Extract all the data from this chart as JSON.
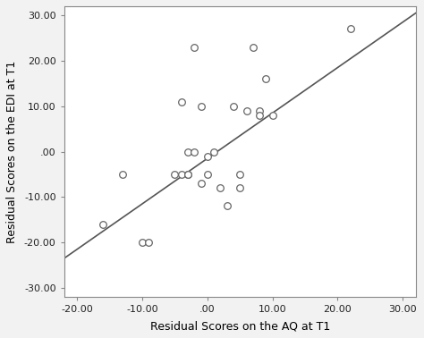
{
  "x_points": [
    -16,
    -13,
    -10,
    -9,
    -5,
    -4,
    -4,
    -3,
    -3,
    -3,
    -2,
    -2,
    -1,
    -1,
    0,
    0,
    1,
    2,
    3,
    4,
    5,
    5,
    6,
    7,
    8,
    8,
    9,
    10,
    22
  ],
  "y_points": [
    -16,
    -5,
    -20,
    -20,
    -5,
    -5,
    11,
    0,
    -5,
    -5,
    0,
    23,
    -7,
    10,
    -5,
    -1,
    0,
    -8,
    -12,
    10,
    -8,
    -5,
    9,
    23,
    9,
    8,
    16,
    8,
    27
  ],
  "line_x_start": -22,
  "line_x_end": 32,
  "line_slope": 1.0,
  "line_intercept": -1.5,
  "xlim": [
    -22,
    32
  ],
  "ylim": [
    -32,
    32
  ],
  "xticks": [
    -20,
    -10,
    0,
    10,
    20,
    30
  ],
  "yticks": [
    -30,
    -20,
    -10,
    0,
    10,
    20,
    30
  ],
  "xtick_labels": [
    "-20.00",
    "-10.00",
    ".00",
    "10.00",
    "20.00",
    "30.00"
  ],
  "ytick_labels": [
    "-30.00",
    "-20.00",
    "-10.00",
    ".00",
    "10.00",
    "20.00",
    "30.00"
  ],
  "xlabel": "Residual Scores on the AQ at T1",
  "ylabel": "Residual Scores on the EDI at T1",
  "marker_facecolor": "white",
  "marker_edge_color": "#666666",
  "line_color": "#555555",
  "spine_color": "#888888",
  "background_color": "#f2f2f2",
  "plot_bg_color": "#ffffff",
  "marker_size": 5.5,
  "line_width": 1.2,
  "tick_fontsize": 8,
  "label_fontsize": 9
}
